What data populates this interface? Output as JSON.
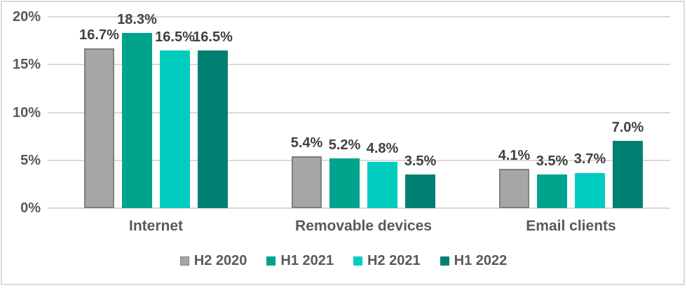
{
  "chart_data": {
    "type": "bar",
    "title": "",
    "categories": [
      "Internet",
      "Removable devices",
      "Email clients"
    ],
    "series": [
      {
        "name": "H2 2020",
        "color": "#A6A6A6",
        "border_color": "#7F7F7F",
        "values": [
          16.7,
          5.4,
          4.1
        ]
      },
      {
        "name": "H1 2021",
        "color": "#00A38C",
        "border_color": null,
        "values": [
          18.3,
          5.2,
          3.5
        ]
      },
      {
        "name": "H2 2021",
        "color": "#00CCC0",
        "border_color": null,
        "values": [
          16.5,
          4.8,
          3.7
        ]
      },
      {
        "name": "H1 2022",
        "color": "#008073",
        "border_color": null,
        "values": [
          16.5,
          3.5,
          7.0
        ]
      }
    ],
    "data_labels": [
      [
        "16.7%",
        "18.3%",
        "16.5%",
        "16.5%"
      ],
      [
        "5.4%",
        "5.2%",
        "4.8%",
        "3.5%"
      ],
      [
        "4.1%",
        "3.5%",
        "3.7%",
        "7.0%"
      ]
    ],
    "y_axis": {
      "ticks": [
        "0%",
        "5%",
        "10%",
        "15%",
        "20%"
      ],
      "tick_values": [
        0,
        5,
        10,
        15,
        20
      ],
      "min": 0,
      "max": 20
    },
    "xlabel": "",
    "ylabel": "",
    "grid": true,
    "legend_position": "bottom",
    "colors": {
      "gridline": "#D9D9D9",
      "frame": "#D9D9D9",
      "axis_text": "#595959",
      "data_label_text": "#404040"
    }
  }
}
